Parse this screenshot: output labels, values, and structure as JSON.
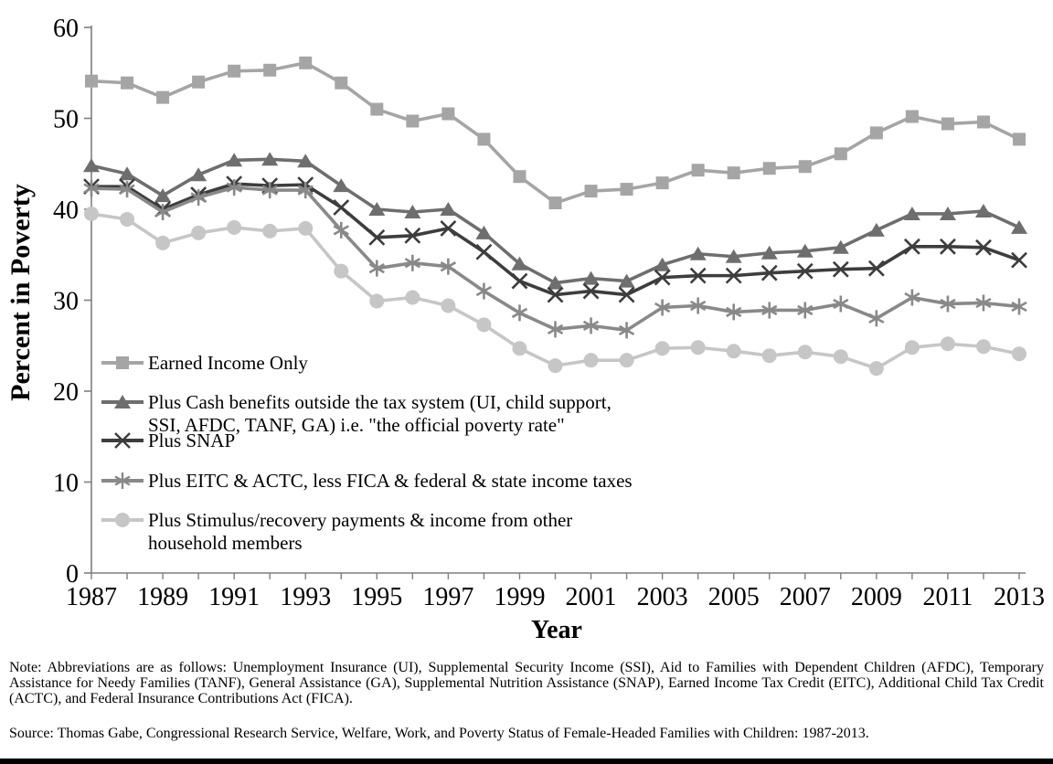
{
  "figure": {
    "y_axis_title": "Percent in Poverty",
    "x_axis_title": "Year",
    "note": "Note: Abbreviations are as follows: Unemployment Insurance (UI), Supplemental Security Income (SSI), Aid to Families with Dependent Children (AFDC), Temporary Assistance for Needy Families (TANF), General Assistance (GA), Supplemental Nutrition Assistance (SNAP), Earned Income Tax Credit (EITC), Additional Child Tax Credit (ACTC), and Federal Insurance Contributions Act (FICA).",
    "source": "Source: Thomas Gabe, Congressional Research Service, Welfare, Work, and Poverty Status of Female-Headed Families with Children: 1987-2013."
  },
  "legend": {
    "items": [
      {
        "marker": "square",
        "lines": [
          "Earned Income Only"
        ]
      },
      {
        "marker": "triangle",
        "lines": [
          "Plus Cash benefits outside the tax system (UI, child support,",
          "SSI, AFDC, TANF, GA) i.e. \"the official poverty rate\""
        ]
      },
      {
        "marker": "x",
        "lines": [
          "Plus SNAP"
        ]
      },
      {
        "marker": "asterisk",
        "lines": [
          "Plus EITC & ACTC, less FICA & federal & state income taxes"
        ]
      },
      {
        "marker": "circle",
        "lines": [
          "Plus Stimulus/recovery payments & income from other",
          "household members"
        ]
      }
    ]
  },
  "chart_data": {
    "type": "line",
    "title": "",
    "xlabel": "Year",
    "ylabel": "Percent in Poverty",
    "ylim": [
      0,
      60
    ],
    "y_ticks": [
      0,
      10,
      20,
      30,
      40,
      50,
      60
    ],
    "x_tick_labels": [
      "1987",
      "1989",
      "1991",
      "1993",
      "1995",
      "1997",
      "1999",
      "2001",
      "2003",
      "2005",
      "2007",
      "2009",
      "2011",
      "2013"
    ],
    "grid": false,
    "legend_position": "inside-left",
    "x": [
      1987,
      1988,
      1989,
      1990,
      1991,
      1992,
      1993,
      1994,
      1995,
      1996,
      1997,
      1998,
      1999,
      2000,
      2001,
      2002,
      2003,
      2004,
      2005,
      2006,
      2007,
      2008,
      2009,
      2010,
      2011,
      2012,
      2013
    ],
    "series": [
      {
        "name": "Earned Income Only",
        "marker": "square",
        "color": "#a5a5a5",
        "values": [
          54.1,
          53.9,
          52.3,
          54.0,
          55.2,
          55.3,
          56.1,
          53.9,
          51.0,
          49.7,
          50.5,
          47.7,
          43.6,
          40.7,
          42.0,
          42.2,
          42.9,
          44.3,
          44.0,
          44.5,
          44.7,
          46.1,
          48.4,
          50.2,
          49.4,
          49.6,
          47.7
        ]
      },
      {
        "name": "Plus Cash benefits outside the tax system (UI, child support, SSI, AFDC, TANF, GA) i.e. \"the official poverty rate\"",
        "marker": "triangle",
        "color": "#6e6e6e",
        "values": [
          44.8,
          43.9,
          41.5,
          43.8,
          45.4,
          45.5,
          45.3,
          42.6,
          40.0,
          39.7,
          40.0,
          37.4,
          34.0,
          31.9,
          32.4,
          32.1,
          33.9,
          35.1,
          34.8,
          35.2,
          35.4,
          35.8,
          37.7,
          39.5,
          39.5,
          39.8,
          38.0
        ]
      },
      {
        "name": "Plus SNAP",
        "marker": "x",
        "color": "#3d3d3d",
        "values": [
          42.5,
          42.5,
          40.0,
          41.6,
          42.8,
          42.6,
          42.7,
          40.2,
          36.9,
          37.1,
          37.9,
          35.3,
          32.1,
          30.6,
          31.0,
          30.6,
          32.5,
          32.7,
          32.7,
          33.0,
          33.2,
          33.4,
          33.5,
          35.9,
          35.9,
          35.8,
          34.4
        ]
      },
      {
        "name": "Plus EITC & ACTC, less FICA & federal & state income taxes",
        "marker": "asterisk",
        "color": "#898989",
        "values": [
          42.3,
          42.2,
          39.7,
          41.3,
          42.4,
          42.1,
          42.1,
          37.7,
          33.5,
          34.1,
          33.7,
          31.0,
          28.6,
          26.8,
          27.2,
          26.7,
          29.2,
          29.4,
          28.7,
          28.9,
          28.9,
          29.6,
          28.0,
          30.3,
          29.6,
          29.7,
          29.3
        ]
      },
      {
        "name": "Plus Stimulus/recovery payments & income from other household members",
        "marker": "circle",
        "color": "#c6c6c6",
        "values": [
          39.5,
          38.9,
          36.3,
          37.4,
          38.0,
          37.6,
          37.9,
          33.2,
          29.9,
          30.3,
          29.4,
          27.3,
          24.7,
          22.8,
          23.4,
          23.4,
          24.7,
          24.8,
          24.4,
          23.9,
          24.3,
          23.8,
          22.5,
          24.8,
          25.2,
          24.9,
          24.1
        ]
      }
    ]
  }
}
